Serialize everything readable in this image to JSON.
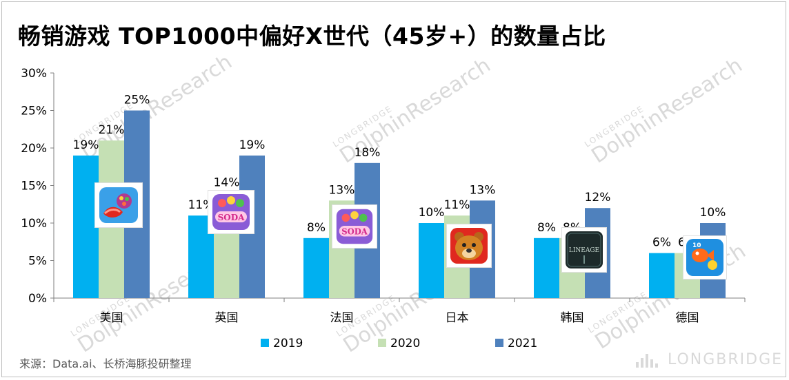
{
  "title": "畅销游戏 TOP1000中偏好X世代（45岁+）的数量占比",
  "source": "来源：Data.ai、长桥海豚投研整理",
  "watermark": {
    "small": "LONGBRIDGE",
    "large": "DolphinResearch",
    "brand": "LONGBRIDGE"
  },
  "colors": {
    "2019": "#00b0f0",
    "2020": "#c5e0b4",
    "2021": "#4f81bd",
    "axis": "#7f7f7f"
  },
  "chart_data": {
    "type": "bar",
    "categories": [
      "美国",
      "英国",
      "法国",
      "日本",
      "韩国",
      "德国"
    ],
    "series": [
      {
        "name": "2019",
        "values": [
          19,
          11,
          8,
          10,
          8,
          6
        ],
        "labels": [
          "19%",
          "11%",
          "8%",
          "10%",
          "8%",
          "6%"
        ]
      },
      {
        "name": "2020",
        "values": [
          21,
          14,
          13,
          11,
          8,
          6
        ],
        "labels": [
          "21%",
          "14%",
          "13%",
          "11%",
          "8%",
          "6%"
        ]
      },
      {
        "name": "2021",
        "values": [
          25,
          19,
          18,
          13,
          12,
          10
        ],
        "labels": [
          "25%",
          "19%",
          "18%",
          "13%",
          "12%",
          "10%"
        ]
      }
    ],
    "yticks": [
      "0%",
      "5%",
      "10%",
      "15%",
      "20%",
      "25%",
      "30%"
    ],
    "ylim": [
      0,
      30
    ],
    "grid": false,
    "legend": "bottom",
    "icons": [
      "candy-crush-icon",
      "candy-crush-soda-icon",
      "candy-crush-soda-icon",
      "bear-game-icon",
      "lineage-icon",
      "fishdom-icon"
    ]
  }
}
